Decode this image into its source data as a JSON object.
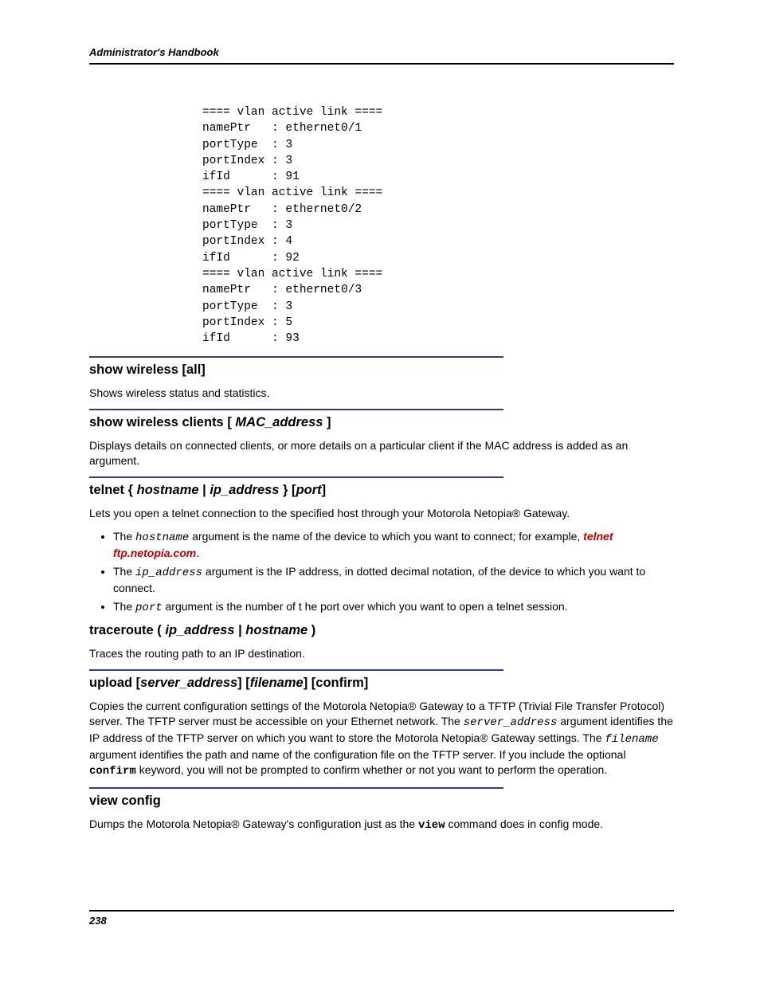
{
  "header": {
    "title": "Administrator's Handbook"
  },
  "code": {
    "text": "==== vlan active link ====\nnamePtr   : ethernet0/1\nportType  : 3\nportIndex : 3\nifId      : 91\n==== vlan active link ====\nnamePtr   : ethernet0/2\nportType  : 3\nportIndex : 4\nifId      : 92\n==== vlan active link ====\nnamePtr   : ethernet0/3\nportType  : 3\nportIndex : 5\nifId      : 93"
  },
  "sections": {
    "wireless_all": {
      "heading_plain": "show wireless [all]",
      "body": "Shows wireless status and statistics."
    },
    "wireless_clients": {
      "heading_pre": "show wireless clients [ ",
      "heading_ital": "MAC_address",
      "heading_post": " ]",
      "body": "Displays details on connected clients, or more details on a particular client if the MAC address is added as an argument."
    },
    "telnet": {
      "heading_pre": "telnet { ",
      "heading_it1": "hostname",
      "heading_mid1": " | ",
      "heading_it2": "ip_address",
      "heading_mid2": " } [",
      "heading_it3": "port",
      "heading_post": "]",
      "body": "Lets you open a telnet connection to the specified host through your Motorola Netopia® Gateway.",
      "bullets": {
        "b1_pre": "The ",
        "b1_mono": "hostname",
        "b1_mid": " argument is the name of the device to which you want to connect; for example, ",
        "b1_red": "telnet ftp.netopia.com",
        "b1_post": ".",
        "b2_pre": "The ",
        "b2_mono": "ip_address",
        "b2_post": " argument is the IP address, in dotted decimal notation, of the device to which you want to connect.",
        "b3_pre": "The ",
        "b3_mono": "port",
        "b3_post": " argument is the number of t he port over which you want to open a telnet session."
      }
    },
    "traceroute": {
      "heading_pre": "traceroute ( ",
      "heading_it1": "ip_address",
      "heading_mid": " | ",
      "heading_it2": "hostname",
      "heading_post": " )",
      "body": "Traces the routing path to an IP destination."
    },
    "upload": {
      "heading_pre": "upload [",
      "heading_it1": "server_address",
      "heading_mid1": "] [",
      "heading_it2": "filename",
      "heading_post": "] [confirm]",
      "body_pre": "Copies the current configuration settings of the Motorola Netopia® Gateway to a TFTP (Trivial File Transfer Protocol) server. The TFTP server must be accessible on your Ethernet network. The ",
      "body_mono1": "server_address",
      "body_mid1": " argument identifies the IP address of the TFTP server on which you want to store the Motorola Netopia® Gateway settings. The ",
      "body_mono2": "filename",
      "body_mid2": " argument identifies the path and name of the configuration file on the TFTP server. If you include the optional ",
      "body_mono3": "confirm",
      "body_post": " keyword, you will not be prompted to confirm whether or not you want to perform the operation."
    },
    "view_config": {
      "heading": "view config",
      "body_pre": "Dumps the Motorola Netopia® Gateway's configuration just as the ",
      "body_mono": "view",
      "body_post": " command does in config mode."
    }
  },
  "footer": {
    "page_number": "238"
  },
  "style": {
    "rule_color": "#2e3c8c",
    "red": "#c00000",
    "text_color": "#000000",
    "bg": "#ffffff"
  }
}
